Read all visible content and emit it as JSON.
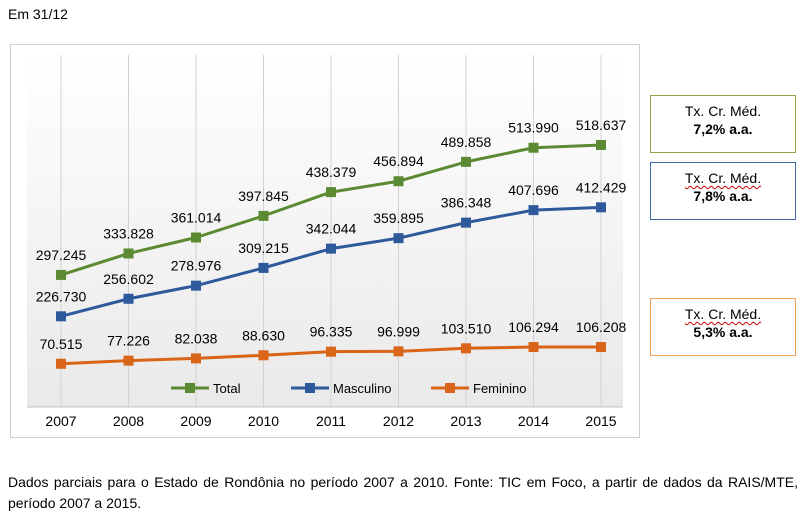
{
  "header": {
    "note": "Em 31/12"
  },
  "chart_data": {
    "type": "line",
    "x": [
      "2007",
      "2008",
      "2009",
      "2010",
      "2011",
      "2012",
      "2013",
      "2014",
      "2015"
    ],
    "series": [
      {
        "name": "Total",
        "color": "#5b8a32",
        "values": [
          297245,
          333828,
          361014,
          397845,
          438379,
          456894,
          489858,
          513990,
          518637
        ],
        "labels": [
          "297.245",
          "333.828",
          "361.014",
          "397.845",
          "438.379",
          "456.894",
          "489.858",
          "513.990",
          "518.637"
        ]
      },
      {
        "name": "Masculino",
        "color": "#2e5a9c",
        "values": [
          226730,
          256602,
          278976,
          309215,
          342044,
          359895,
          386348,
          407696,
          412429
        ],
        "labels": [
          "226.730",
          "256.602",
          "278.976",
          "309.215",
          "342.044",
          "359.895",
          "386.348",
          "407.696",
          "412.429"
        ]
      },
      {
        "name": "Feminino",
        "color": "#d86518",
        "values": [
          70515,
          77226,
          82038,
          88630,
          96335,
          96999,
          103510,
          106294,
          106208
        ],
        "labels": [
          "70.515",
          "77.226",
          "82.038",
          "88.630",
          "96.335",
          "96.999",
          "103.510",
          "106.294",
          "106.208"
        ]
      }
    ],
    "legend_position": "bottom-inside",
    "grid": "vertical"
  },
  "callouts": [
    {
      "label": "Tx. Cr. Méd.",
      "value": "7,2% a.a."
    },
    {
      "label": "Tx. Cr. Méd.",
      "value": "7,8% a.a."
    },
    {
      "label": "Tx. Cr. Méd.",
      "value": "5,3% a.a."
    }
  ],
  "footnote": "Dados parciais para o Estado de Rondônia no período 2007 a 2010. Fonte: TIC em Foco, a partir de dados da RAIS/MTE, período 2007 a 2015."
}
